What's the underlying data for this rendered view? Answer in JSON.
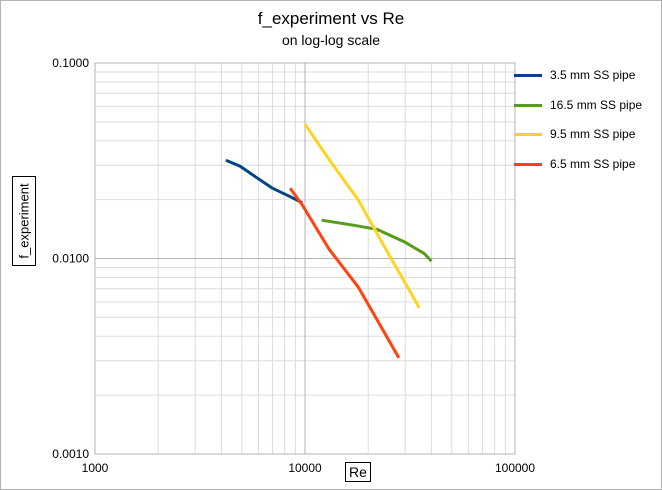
{
  "chart_data": {
    "type": "line",
    "title": "f_experiment vs Re",
    "subtitle": "on log-log scale",
    "xlabel": "Re",
    "ylabel": "f_experiment",
    "x_scale": "log",
    "y_scale": "log",
    "xlim": [
      1000,
      100000
    ],
    "ylim": [
      0.001,
      0.1
    ],
    "x_ticks": [
      "1000",
      "10000",
      "100000"
    ],
    "y_ticks": [
      "0.0010",
      "0.0100",
      "0.1000"
    ],
    "grid": true,
    "legend_position": "right",
    "series": [
      {
        "name": "3.5 mm SS pipe",
        "color": "#004586",
        "x": [
          4200,
          4900,
          5800,
          7000,
          8500,
          9700
        ],
        "y": [
          0.0318,
          0.0297,
          0.0262,
          0.0229,
          0.0207,
          0.0193
        ]
      },
      {
        "name": "16.5 mm SS pipe",
        "color": "#579d1c",
        "x": [
          12000,
          17000,
          22000,
          30000,
          37000,
          40000
        ],
        "y": [
          0.0157,
          0.0148,
          0.0141,
          0.0121,
          0.0106,
          0.0097
        ]
      },
      {
        "name": "9.5 mm SS pipe",
        "color": "#ffd320",
        "x": [
          10000,
          13000,
          18000,
          24000,
          35000
        ],
        "y": [
          0.0487,
          0.0322,
          0.0198,
          0.0114,
          0.0056
        ]
      },
      {
        "name": "6.5 mm SS pipe",
        "color": "#ff420e",
        "x": [
          8500,
          9700,
          13000,
          18000,
          28000
        ],
        "y": [
          0.0229,
          0.0188,
          0.0112,
          0.0071,
          0.0031
        ]
      }
    ]
  }
}
